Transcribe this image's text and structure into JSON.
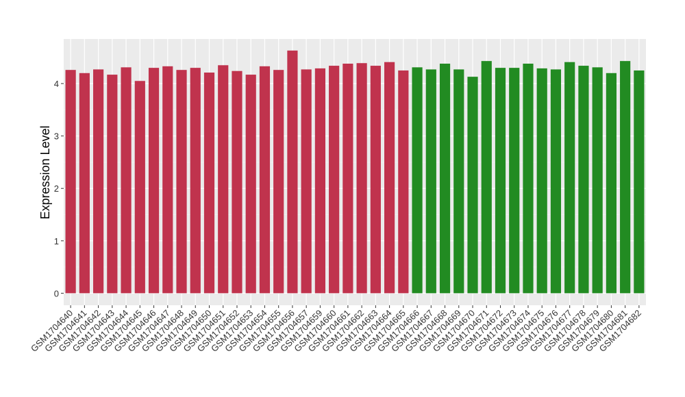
{
  "chart_data": {
    "type": "bar",
    "y_label": "Expression Level",
    "categories": [
      "GSM1704640",
      "GSM1704641",
      "GSM1704642",
      "GSM1704643",
      "GSM1704644",
      "GSM1704645",
      "GSM1704646",
      "GSM1704647",
      "GSM1704648",
      "GSM1704649",
      "GSM1704650",
      "GSM1704651",
      "GSM1704652",
      "GSM1704653",
      "GSM1704654",
      "GSM1704655",
      "GSM1704656",
      "GSM1704657",
      "GSM1704659",
      "GSM1704660",
      "GSM1704661",
      "GSM1704662",
      "GSM1704663",
      "GSM1704664",
      "GSM1704665",
      "GSM1704666",
      "GSM1704667",
      "GSM1704668",
      "GSM1704669",
      "GSM1704670",
      "GSM1704671",
      "GSM1704672",
      "GSM1704673",
      "GSM1704674",
      "GSM1704675",
      "GSM1704676",
      "GSM1704677",
      "GSM1704678",
      "GSM1704679",
      "GSM1704680",
      "GSM1704681",
      "GSM1704682"
    ],
    "values": [
      4.26,
      4.2,
      4.27,
      4.17,
      4.31,
      4.05,
      4.3,
      4.33,
      4.26,
      4.3,
      4.21,
      4.35,
      4.24,
      4.17,
      4.33,
      4.26,
      4.63,
      4.27,
      4.29,
      4.34,
      4.38,
      4.39,
      4.34,
      4.41,
      4.25,
      4.31,
      4.27,
      4.38,
      4.27,
      4.13,
      4.43,
      4.3,
      4.3,
      4.38,
      4.29,
      4.27,
      4.41,
      4.34,
      4.31,
      4.2,
      4.43,
      4.25
    ],
    "colors": [
      "#c0334d",
      "#c0334d",
      "#c0334d",
      "#c0334d",
      "#c0334d",
      "#c0334d",
      "#c0334d",
      "#c0334d",
      "#c0334d",
      "#c0334d",
      "#c0334d",
      "#c0334d",
      "#c0334d",
      "#c0334d",
      "#c0334d",
      "#c0334d",
      "#c0334d",
      "#c0334d",
      "#c0334d",
      "#c0334d",
      "#c0334d",
      "#c0334d",
      "#c0334d",
      "#c0334d",
      "#c0334d",
      "#228b22",
      "#228b22",
      "#228b22",
      "#228b22",
      "#228b22",
      "#228b22",
      "#228b22",
      "#228b22",
      "#228b22",
      "#228b22",
      "#228b22",
      "#228b22",
      "#228b22",
      "#228b22",
      "#228b22",
      "#228b22",
      "#228b22"
    ],
    "ylim": [
      -0.23,
      4.85
    ],
    "yticks": [
      0,
      1,
      2,
      3,
      4
    ],
    "grid": true
  }
}
